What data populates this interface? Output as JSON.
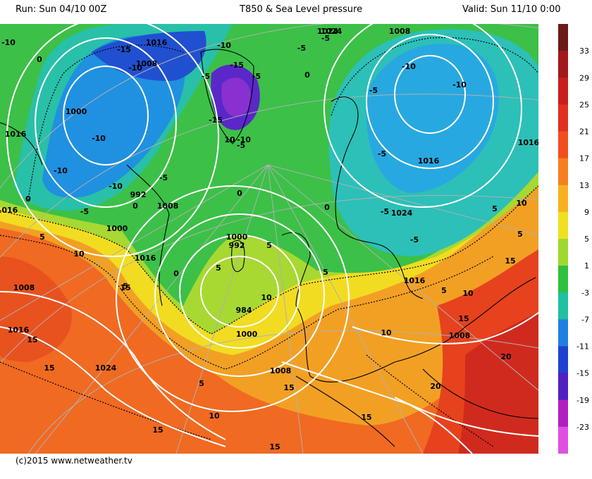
{
  "header": {
    "run": "Run: Sun 04/10 00Z",
    "title": "T850 & Sea Level pressure",
    "valid": "Valid: Sun 11/10 0:00"
  },
  "footer": {
    "credit": "(c)2015 www.netweather.tv"
  },
  "legend": {
    "labels": [
      "33",
      "29",
      "25",
      "21",
      "17",
      "13",
      "9",
      "5",
      "1",
      "-3",
      "-7",
      "-11",
      "-15",
      "-19",
      "-23"
    ],
    "colors": [
      "#6b1a1a",
      "#a01a1a",
      "#c81e1e",
      "#e03020",
      "#f05020",
      "#f58020",
      "#f8b020",
      "#f0e020",
      "#a0d830",
      "#30c040",
      "#20c0a0",
      "#2080e0",
      "#2040d0",
      "#5020c0",
      "#b020c0",
      "#e050e0"
    ]
  },
  "pressure_labels": [
    {
      "text": "1016"
    },
    {
      "text": "1008"
    },
    {
      "text": "1000"
    },
    {
      "text": "1016"
    },
    {
      "text": "992"
    },
    {
      "text": "1008"
    },
    {
      "text": "1000"
    },
    {
      "text": "1016"
    },
    {
      "text": "1008"
    },
    {
      "text": "1016"
    },
    {
      "text": "1024"
    },
    {
      "text": "1000"
    },
    {
      "text": "992"
    },
    {
      "text": "984"
    },
    {
      "text": "1000"
    },
    {
      "text": "1008"
    },
    {
      "text": "1024"
    },
    {
      "text": "1008"
    },
    {
      "text": "1024"
    },
    {
      "text": "1016"
    },
    {
      "text": "1024"
    },
    {
      "text": "1016"
    },
    {
      "text": "1016"
    },
    {
      "text": "1008"
    },
    {
      "text": "1016"
    }
  ],
  "temp_labels": [
    {
      "text": "-10"
    },
    {
      "text": "0"
    },
    {
      "text": "-15"
    },
    {
      "text": "-10"
    },
    {
      "text": "-5"
    },
    {
      "text": "-10"
    },
    {
      "text": "-5"
    },
    {
      "text": "-15"
    },
    {
      "text": "-5"
    },
    {
      "text": "-15"
    },
    {
      "text": "10"
    },
    {
      "text": "-10"
    },
    {
      "text": "-5"
    },
    {
      "text": "-10"
    },
    {
      "text": "-10"
    },
    {
      "text": "-10"
    },
    {
      "text": "-5"
    },
    {
      "text": "0"
    },
    {
      "text": "-5"
    },
    {
      "text": "0"
    },
    {
      "text": "-5"
    },
    {
      "text": "-5"
    },
    {
      "text": "-10"
    },
    {
      "text": "-10"
    },
    {
      "text": "-5"
    },
    {
      "text": "-5"
    },
    {
      "text": "-5"
    },
    {
      "text": "0"
    },
    {
      "text": "0"
    },
    {
      "text": "0"
    },
    {
      "text": "5"
    },
    {
      "text": "5"
    },
    {
      "text": "10"
    },
    {
      "text": "5"
    },
    {
      "text": "10"
    },
    {
      "text": "5"
    },
    {
      "text": "15"
    },
    {
      "text": "0"
    },
    {
      "text": "5"
    },
    {
      "text": "5"
    },
    {
      "text": "5"
    },
    {
      "text": "5"
    },
    {
      "text": "10"
    },
    {
      "text": "15"
    },
    {
      "text": "15"
    },
    {
      "text": "10"
    },
    {
      "text": "15"
    },
    {
      "text": "20"
    },
    {
      "text": "20"
    },
    {
      "text": "15"
    },
    {
      "text": "15"
    },
    {
      "text": "15"
    },
    {
      "text": "10"
    },
    {
      "text": "15"
    },
    {
      "text": "5"
    },
    {
      "text": "10"
    },
    {
      "text": "15"
    }
  ]
}
